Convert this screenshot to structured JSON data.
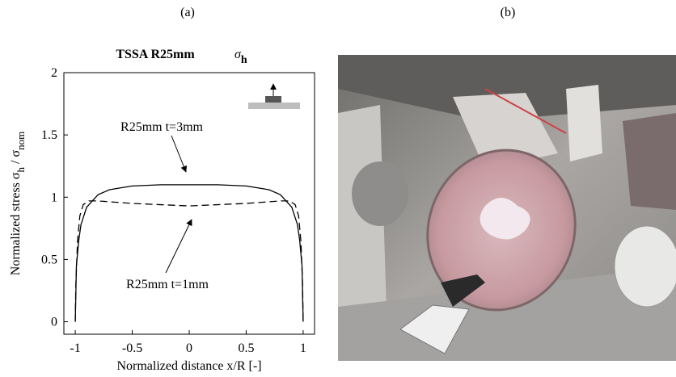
{
  "panels": [
    "(a)",
    "(b)"
  ],
  "chart_data": {
    "type": "line",
    "title": "TSSA R25mm",
    "title_symbol": [
      "σ",
      "h"
    ],
    "xlabel": "Normalized distance x/R [-]",
    "ylabel": [
      "Normalized stress  σ",
      "h",
      " / σ",
      "nom"
    ],
    "xlim": [
      -1.1,
      1.1
    ],
    "ylim": [
      -0.1,
      2
    ],
    "xticks": [
      -1,
      -0.5,
      0,
      0.5,
      1
    ],
    "yticks": [
      0,
      0.5,
      1,
      1.5,
      2
    ],
    "series": [
      {
        "name": "R25mm t=3mm",
        "color": "#000000",
        "dash": false,
        "x": [
          -1,
          -0.99,
          -0.97,
          -0.95,
          -0.9,
          -0.8,
          -0.7,
          -0.5,
          -0.25,
          0,
          0.25,
          0.5,
          0.7,
          0.8,
          0.9,
          0.95,
          0.97,
          0.99,
          1
        ],
        "values": [
          0,
          0.45,
          0.65,
          0.78,
          0.92,
          1.02,
          1.06,
          1.09,
          1.1,
          1.1,
          1.1,
          1.09,
          1.06,
          1.02,
          0.92,
          0.78,
          0.65,
          0.45,
          0
        ]
      },
      {
        "name": "R25mm t=1mm",
        "color": "#000000",
        "dash": true,
        "x": [
          -1,
          -0.995,
          -0.98,
          -0.96,
          -0.93,
          -0.88,
          -0.8,
          -0.5,
          -0.25,
          0,
          0.25,
          0.5,
          0.8,
          0.88,
          0.93,
          0.96,
          0.98,
          0.995,
          1
        ],
        "values": [
          0,
          0.3,
          0.65,
          0.85,
          0.94,
          0.97,
          0.97,
          0.95,
          0.94,
          0.93,
          0.94,
          0.95,
          0.97,
          0.97,
          0.94,
          0.85,
          0.65,
          0.3,
          0
        ]
      }
    ]
  }
}
